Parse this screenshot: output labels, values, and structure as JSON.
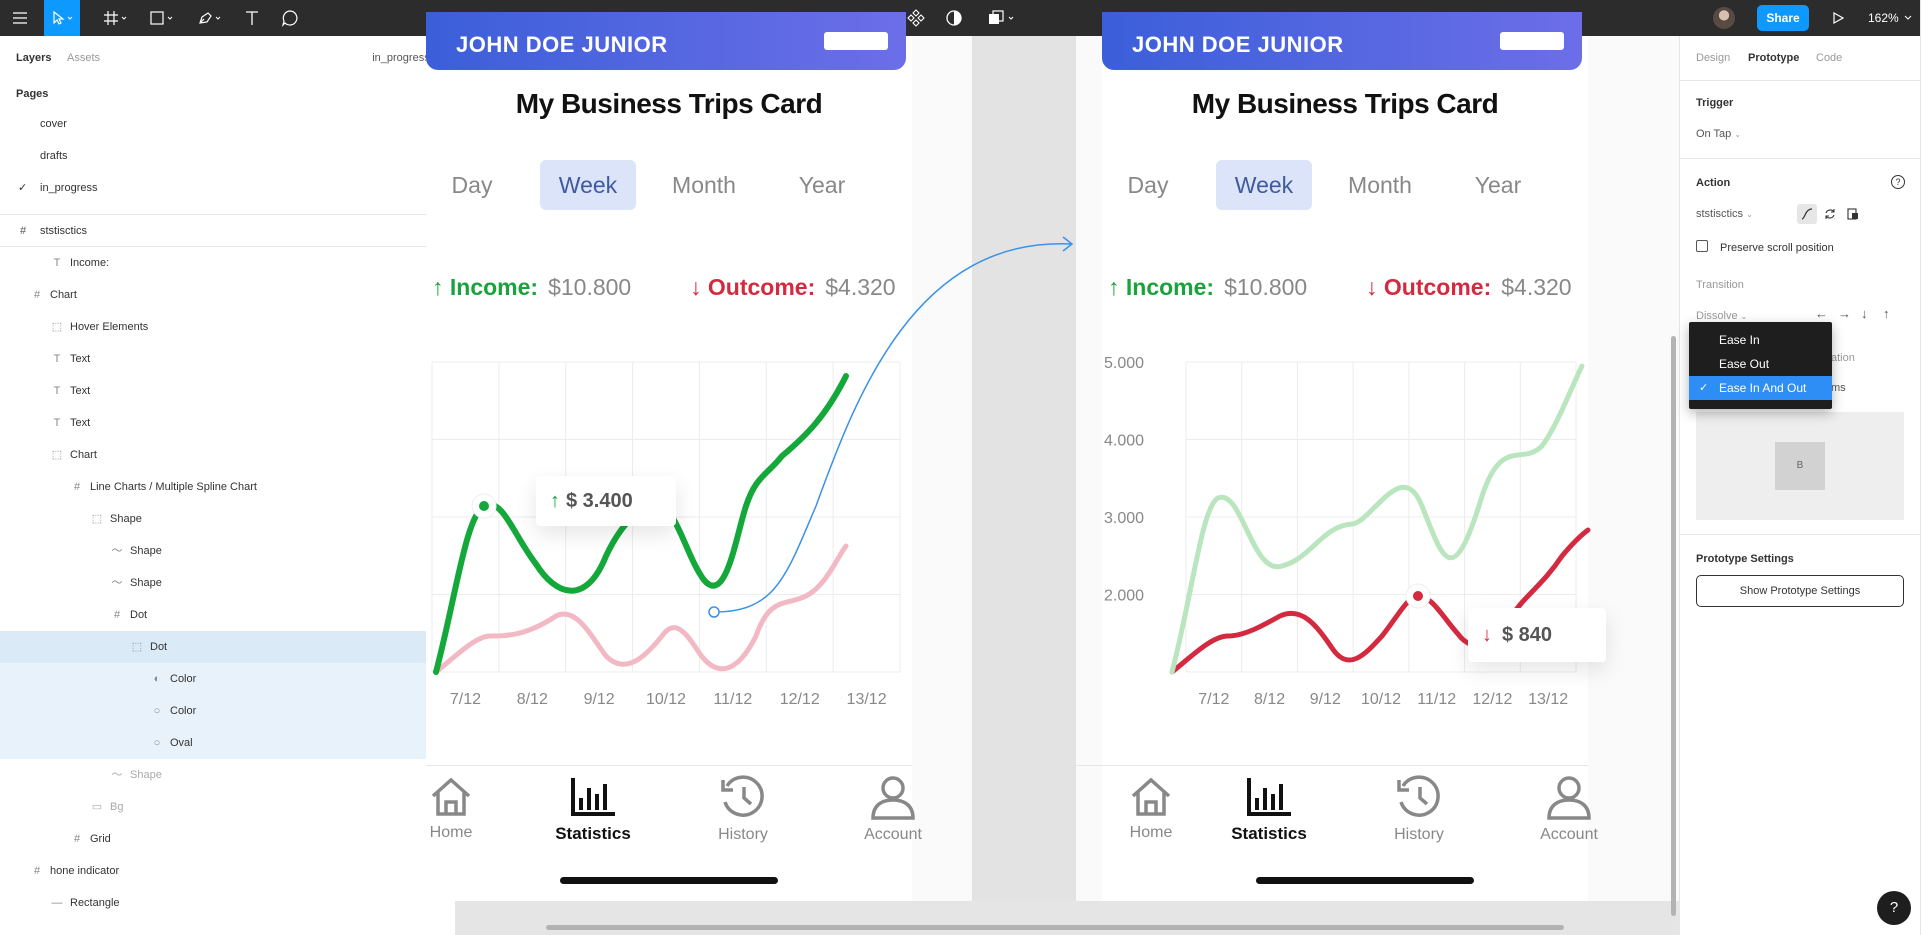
{
  "toolbar": {
    "share_label": "Share",
    "zoom": "162%"
  },
  "left_panel": {
    "tabs": [
      "Layers",
      "Assets"
    ],
    "current_page": "in_progress",
    "pages_title": "Pages",
    "pages": [
      {
        "label": "cover",
        "selected": false
      },
      {
        "label": "drafts",
        "selected": false
      },
      {
        "label": "in_progress",
        "selected": true
      }
    ],
    "frame_name": "ststisctics",
    "layers": [
      {
        "label": "Income:",
        "icon": "text-icon"
      },
      {
        "label": "Chart",
        "icon": "frame-icon"
      },
      {
        "label": "Hover Elements",
        "icon": "group-icon"
      },
      {
        "label": "Text",
        "icon": "text-icon"
      },
      {
        "label": "Text",
        "icon": "text-icon"
      },
      {
        "label": "Text",
        "icon": "text-icon"
      },
      {
        "label": "Chart",
        "icon": "group-icon"
      },
      {
        "label": "Line Charts / Multiple Spline Chart",
        "icon": "frame-icon"
      },
      {
        "label": "Shape",
        "icon": "group-icon"
      },
      {
        "label": "Shape",
        "icon": "vector-icon"
      },
      {
        "label": "Shape",
        "icon": "vector-icon"
      },
      {
        "label": "Dot",
        "icon": "frame-icon"
      },
      {
        "label": "Dot",
        "icon": "group-icon"
      },
      {
        "label": "Color",
        "icon": "ellipse-half-icon"
      },
      {
        "label": "Color",
        "icon": "ellipse-icon"
      },
      {
        "label": "Oval",
        "icon": "ellipse-icon"
      },
      {
        "label": "Shape",
        "icon": "vector-icon"
      },
      {
        "label": "Bg",
        "icon": "rectangle-icon"
      },
      {
        "label": "Grid",
        "icon": "frame-icon"
      },
      {
        "label": "hone indicator",
        "icon": "frame-icon"
      },
      {
        "label": "Rectangle",
        "icon": "line-icon"
      }
    ]
  },
  "cards": [
    {
      "title": "My Business Trips Card",
      "header_name": "JOHN DOE JUNIOR",
      "periods": [
        "Day",
        "Week",
        "Month",
        "Year"
      ],
      "selected_period": "Week",
      "income_label": "Income:",
      "income_value": "$10.800",
      "outcome_label": "Outcome:",
      "outcome_value": "$4.320",
      "x_labels": [
        "7/12",
        "8/12",
        "9/12",
        "10/12",
        "11/12",
        "12/12",
        "13/12"
      ],
      "y_labels": [],
      "tooltip": "$ 3.400",
      "tabs": [
        "Home",
        "Statistics",
        "History",
        "Account"
      ],
      "active_tab": "Statistics"
    },
    {
      "title": "My Business Trips Card",
      "header_name": "JOHN DOE JUNIOR",
      "periods": [
        "Day",
        "Week",
        "Month",
        "Year"
      ],
      "selected_period": "Week",
      "income_label": "Income:",
      "income_value": "$10.800",
      "outcome_label": "Outcome:",
      "outcome_value": "$4.320",
      "x_labels": [
        "7/12",
        "8/12",
        "9/12",
        "10/12",
        "11/12",
        "12/12",
        "13/12"
      ],
      "y_labels": [
        "5.000",
        "4.000",
        "3.000",
        "2.000"
      ],
      "tooltip": "$ 840",
      "tabs": [
        "Home",
        "Statistics",
        "History",
        "Account"
      ],
      "active_tab": "Statistics"
    }
  ],
  "right_panel": {
    "tabs": [
      "Design",
      "Prototype",
      "Code"
    ],
    "active_tab": "Prototype",
    "trigger_title": "Trigger",
    "trigger_value": "On Tap",
    "action_title": "Action",
    "action_destination": "ststisctics",
    "preserve_scroll_label": "Preserve scroll position",
    "transition_title": "Transition",
    "transition_value": "Dissolve",
    "preview_label": "B",
    "hidden_fragment_1": "ation",
    "hidden_fragment_2": "ms",
    "prototype_settings_title": "Prototype Settings",
    "prototype_settings_button": "Show Prototype Settings"
  },
  "easing_dropdown": {
    "options": [
      "Ease In",
      "Ease Out",
      "Ease In And Out"
    ],
    "selected": "Ease In And Out"
  },
  "colors": {
    "figma_blue": "#0d99ff",
    "income_green": "#1aa33d",
    "outcome_red": "#d42a40",
    "pink_series": "#f2b8c4",
    "light_green_series": "#b9e5bf",
    "selected_tab_bg": "#dbe4f8"
  }
}
